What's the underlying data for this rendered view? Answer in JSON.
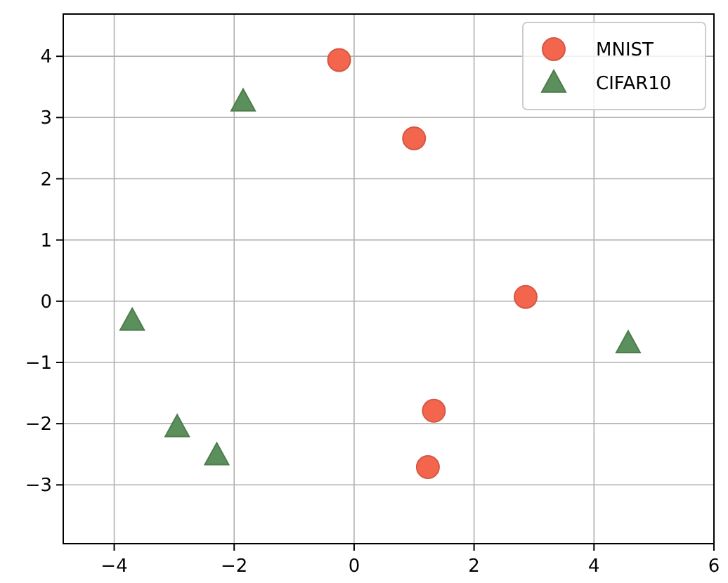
{
  "chart_data": {
    "type": "scatter",
    "xlim": [
      -4.85,
      6
    ],
    "ylim": [
      -3.96,
      4.69
    ],
    "xticks": [
      -4,
      -2,
      0,
      2,
      4,
      6
    ],
    "yticks": [
      -3,
      -2,
      -1,
      0,
      1,
      2,
      3,
      4
    ],
    "grid": true,
    "legend": "top right",
    "series": [
      {
        "name": "MNIST",
        "color": "#f4654e",
        "marker": "circle",
        "x": [
          -0.25,
          1.0,
          2.86,
          1.33,
          1.23
        ],
        "values": [
          3.94,
          2.66,
          0.07,
          -1.79,
          -2.71
        ]
      },
      {
        "name": "CIFAR10",
        "color": "#5b8f5b",
        "marker": "triangle",
        "x": [
          -1.85,
          -3.7,
          -2.95,
          -2.29,
          4.57
        ],
        "values": [
          3.26,
          -0.32,
          -2.06,
          -2.52,
          -0.69
        ]
      }
    ]
  }
}
